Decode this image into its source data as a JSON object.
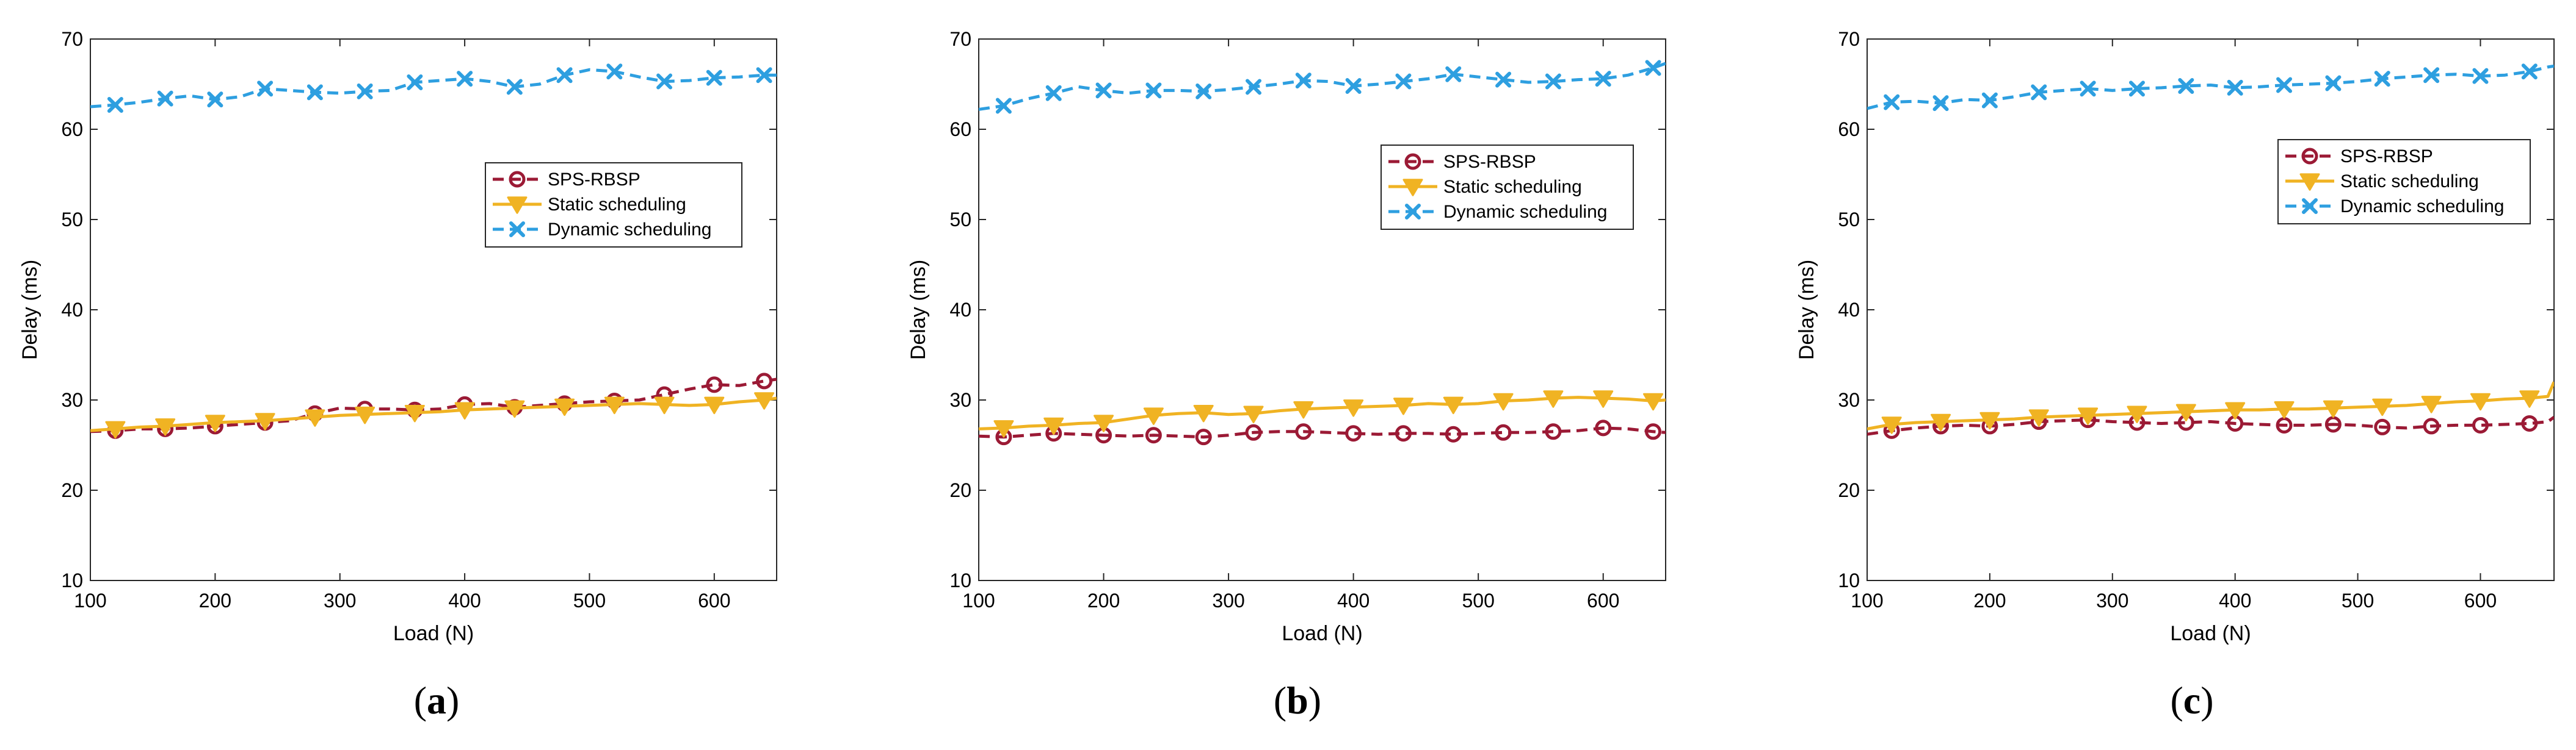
{
  "colors": {
    "sps": "#9b1a35",
    "static": "#f0b323",
    "dynamic": "#2e9fe0",
    "axis": "#262626",
    "legend_border": "#262626"
  },
  "chart_data": [
    {
      "type": "line",
      "caption": "a",
      "title": "",
      "xlabel": "Load (N)",
      "ylabel": "Delay (ms)",
      "xlim": [
        100,
        650
      ],
      "ylim": [
        10,
        70
      ],
      "xticks": [
        100,
        200,
        300,
        400,
        500,
        600
      ],
      "yticks": [
        10,
        20,
        30,
        40,
        50,
        60,
        70
      ],
      "legend_position": "center-right",
      "x": [
        100,
        120,
        140,
        160,
        180,
        200,
        220,
        240,
        260,
        280,
        300,
        320,
        340,
        360,
        380,
        400,
        420,
        440,
        460,
        480,
        500,
        520,
        540,
        560,
        580,
        600,
        620,
        640,
        650
      ],
      "series": [
        {
          "name": "SPS-RBSP",
          "style": "dashed",
          "marker": "circle",
          "color": "#9b1a35",
          "values": [
            26.5,
            26.6,
            26.8,
            26.8,
            26.9,
            27.1,
            27.3,
            27.5,
            27.7,
            28.5,
            29.1,
            29.0,
            29.0,
            28.9,
            29.0,
            29.5,
            29.6,
            29.2,
            29.4,
            29.6,
            29.8,
            29.9,
            30.0,
            30.6,
            31.2,
            31.7,
            31.6,
            32.1,
            32.3
          ],
          "marker_every": [
            1,
            3,
            5,
            7,
            9,
            11,
            13,
            15,
            17,
            19,
            21,
            23,
            25,
            27
          ]
        },
        {
          "name": "Static scheduling",
          "style": "solid",
          "marker": "triangle-down",
          "color": "#f0b323",
          "values": [
            26.6,
            26.8,
            27.0,
            27.1,
            27.3,
            27.5,
            27.6,
            27.7,
            27.9,
            28.1,
            28.3,
            28.4,
            28.5,
            28.6,
            28.7,
            28.9,
            29.0,
            29.1,
            29.2,
            29.3,
            29.4,
            29.5,
            29.6,
            29.5,
            29.4,
            29.5,
            29.8,
            30.0,
            30.2
          ],
          "marker_every": [
            1,
            3,
            5,
            7,
            9,
            11,
            13,
            15,
            17,
            19,
            21,
            23,
            25,
            27
          ]
        },
        {
          "name": "Dynamic scheduling",
          "style": "dashed",
          "marker": "x",
          "color": "#2e9fe0",
          "values": [
            62.5,
            62.7,
            63.0,
            63.4,
            63.7,
            63.3,
            63.6,
            64.5,
            64.3,
            64.1,
            64.0,
            64.2,
            64.3,
            65.2,
            65.4,
            65.6,
            65.3,
            64.7,
            65.0,
            66.0,
            66.6,
            66.4,
            65.8,
            65.3,
            65.4,
            65.7,
            65.8,
            66.0,
            66.0
          ],
          "marker_every": [
            1,
            3,
            5,
            7,
            9,
            11,
            13,
            15,
            17,
            19,
            21,
            23,
            25,
            27
          ]
        }
      ]
    },
    {
      "type": "line",
      "caption": "b",
      "title": "",
      "xlabel": "Load (N)",
      "ylabel": "Delay (ms)",
      "xlim": [
        100,
        650
      ],
      "ylim": [
        10,
        70
      ],
      "xticks": [
        100,
        200,
        300,
        400,
        500,
        600
      ],
      "yticks": [
        10,
        20,
        30,
        40,
        50,
        60,
        70
      ],
      "legend_position": "upper-right",
      "x": [
        100,
        120,
        140,
        160,
        180,
        200,
        220,
        240,
        260,
        280,
        300,
        320,
        340,
        360,
        380,
        400,
        420,
        440,
        460,
        480,
        500,
        520,
        540,
        560,
        580,
        600,
        620,
        640,
        650
      ],
      "series": [
        {
          "name": "SPS-RBSP",
          "style": "dashed",
          "marker": "circle",
          "color": "#9b1a35",
          "values": [
            26.0,
            25.9,
            26.1,
            26.3,
            26.2,
            26.1,
            26.0,
            26.1,
            26.0,
            25.9,
            26.1,
            26.4,
            26.5,
            26.5,
            26.4,
            26.3,
            26.2,
            26.3,
            26.3,
            26.2,
            26.3,
            26.4,
            26.4,
            26.5,
            26.6,
            26.9,
            26.8,
            26.5,
            26.4
          ],
          "marker_every": [
            1,
            3,
            5,
            7,
            9,
            11,
            13,
            15,
            17,
            19,
            21,
            23,
            25,
            27
          ]
        },
        {
          "name": "Static scheduling",
          "style": "solid",
          "marker": "triangle-down",
          "color": "#f0b323",
          "values": [
            26.8,
            26.9,
            27.1,
            27.2,
            27.4,
            27.5,
            27.9,
            28.3,
            28.5,
            28.6,
            28.4,
            28.5,
            28.8,
            29.0,
            29.1,
            29.2,
            29.3,
            29.4,
            29.6,
            29.5,
            29.6,
            29.9,
            30.0,
            30.2,
            30.3,
            30.2,
            30.1,
            29.9,
            30.0
          ],
          "marker_every": [
            1,
            3,
            5,
            7,
            9,
            11,
            13,
            15,
            17,
            19,
            21,
            23,
            25,
            27
          ]
        },
        {
          "name": "Dynamic scheduling",
          "style": "dashed",
          "marker": "x",
          "color": "#2e9fe0",
          "values": [
            62.2,
            62.6,
            63.4,
            64.0,
            64.7,
            64.3,
            64.0,
            64.3,
            64.3,
            64.2,
            64.4,
            64.7,
            65.0,
            65.4,
            65.3,
            64.8,
            65.0,
            65.3,
            65.6,
            66.1,
            65.8,
            65.5,
            65.2,
            65.3,
            65.5,
            65.6,
            66.0,
            66.8,
            67.3
          ],
          "marker_every": [
            1,
            3,
            5,
            7,
            9,
            11,
            13,
            15,
            17,
            19,
            21,
            23,
            25,
            27
          ]
        }
      ]
    },
    {
      "type": "line",
      "caption": "c",
      "title": "",
      "xlabel": "Load (N)",
      "ylabel": "Delay (ms)",
      "xlim": [
        100,
        660
      ],
      "ylim": [
        10,
        70
      ],
      "xticks": [
        100,
        200,
        300,
        400,
        500,
        600
      ],
      "yticks": [
        10,
        20,
        30,
        40,
        50,
        60,
        70
      ],
      "legend_position": "upper-right",
      "x": [
        100,
        120,
        140,
        160,
        180,
        200,
        220,
        240,
        260,
        280,
        300,
        320,
        340,
        360,
        380,
        400,
        420,
        440,
        460,
        480,
        500,
        520,
        540,
        560,
        580,
        600,
        620,
        640,
        655,
        660
      ],
      "series": [
        {
          "name": "SPS-RBSP",
          "style": "dashed",
          "marker": "circle",
          "color": "#9b1a35",
          "values": [
            26.2,
            26.6,
            26.9,
            27.1,
            27.2,
            27.1,
            27.3,
            27.6,
            27.7,
            27.8,
            27.6,
            27.5,
            27.4,
            27.5,
            27.6,
            27.4,
            27.3,
            27.2,
            27.2,
            27.3,
            27.2,
            27.0,
            26.9,
            27.1,
            27.2,
            27.2,
            27.3,
            27.4,
            27.6,
            28.1
          ],
          "marker_every": [
            1,
            3,
            5,
            7,
            9,
            11,
            13,
            15,
            17,
            19,
            21,
            23,
            25,
            27
          ]
        },
        {
          "name": "Static scheduling",
          "style": "solid",
          "marker": "triangle-down",
          "color": "#f0b323",
          "values": [
            26.8,
            27.3,
            27.5,
            27.6,
            27.7,
            27.8,
            27.9,
            28.1,
            28.2,
            28.3,
            28.4,
            28.5,
            28.6,
            28.7,
            28.8,
            28.9,
            28.9,
            29.0,
            29.0,
            29.1,
            29.2,
            29.3,
            29.4,
            29.6,
            29.8,
            29.9,
            30.1,
            30.2,
            30.4,
            32.0
          ],
          "marker_every": [
            1,
            3,
            5,
            7,
            9,
            11,
            13,
            15,
            17,
            19,
            21,
            23,
            25,
            27
          ]
        },
        {
          "name": "Dynamic scheduling",
          "style": "dashed",
          "marker": "x",
          "color": "#2e9fe0",
          "values": [
            62.3,
            63.0,
            63.1,
            62.9,
            63.3,
            63.2,
            63.6,
            64.1,
            64.3,
            64.5,
            64.3,
            64.5,
            64.6,
            64.8,
            64.9,
            64.6,
            64.7,
            64.9,
            65.0,
            65.1,
            65.3,
            65.6,
            65.8,
            66.0,
            66.1,
            65.9,
            66.0,
            66.4,
            66.9,
            67.0
          ],
          "marker_every": [
            1,
            3,
            5,
            7,
            9,
            11,
            13,
            15,
            17,
            19,
            21,
            23,
            25,
            27
          ]
        }
      ]
    }
  ],
  "captions": {
    "open": "(",
    "close": ")"
  }
}
